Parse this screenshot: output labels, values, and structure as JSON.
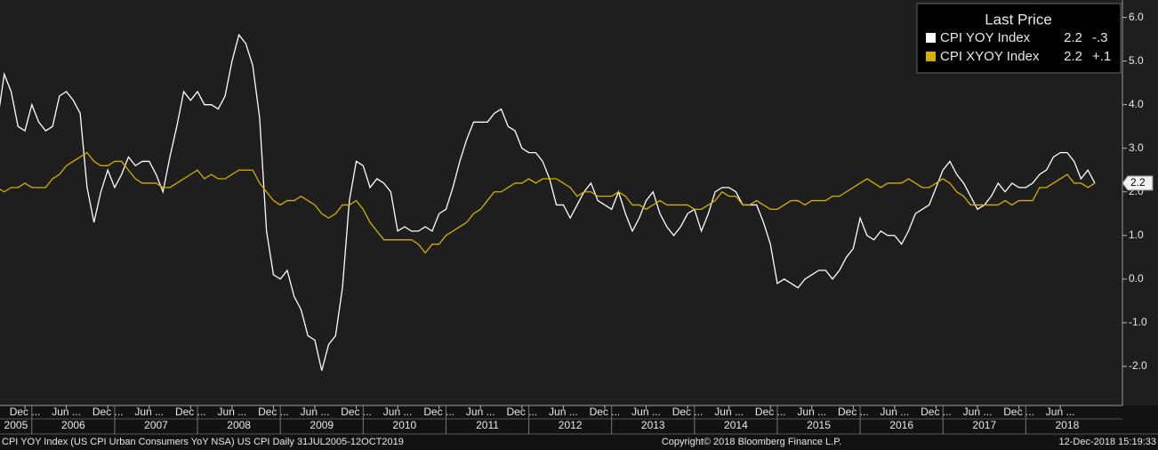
{
  "chart_data": {
    "type": "line",
    "legend_title": "Last Price",
    "x": [
      "2005-08",
      "2005-09",
      "2005-10",
      "2005-11",
      "2005-12",
      "2006-01",
      "2006-02",
      "2006-03",
      "2006-04",
      "2006-05",
      "2006-06",
      "2006-07",
      "2006-08",
      "2006-09",
      "2006-10",
      "2006-11",
      "2006-12",
      "2007-01",
      "2007-02",
      "2007-03",
      "2007-04",
      "2007-05",
      "2007-06",
      "2007-07",
      "2007-08",
      "2007-09",
      "2007-10",
      "2007-11",
      "2007-12",
      "2008-01",
      "2008-02",
      "2008-03",
      "2008-04",
      "2008-05",
      "2008-06",
      "2008-07",
      "2008-08",
      "2008-09",
      "2008-10",
      "2008-11",
      "2008-12",
      "2009-01",
      "2009-02",
      "2009-03",
      "2009-04",
      "2009-05",
      "2009-06",
      "2009-07",
      "2009-08",
      "2009-09",
      "2009-10",
      "2009-11",
      "2009-12",
      "2010-01",
      "2010-02",
      "2010-03",
      "2010-04",
      "2010-05",
      "2010-06",
      "2010-07",
      "2010-08",
      "2010-09",
      "2010-10",
      "2010-11",
      "2010-12",
      "2011-01",
      "2011-02",
      "2011-03",
      "2011-04",
      "2011-05",
      "2011-06",
      "2011-07",
      "2011-08",
      "2011-09",
      "2011-10",
      "2011-11",
      "2011-12",
      "2012-01",
      "2012-02",
      "2012-03",
      "2012-04",
      "2012-05",
      "2012-06",
      "2012-07",
      "2012-08",
      "2012-09",
      "2012-10",
      "2012-11",
      "2012-12",
      "2013-01",
      "2013-02",
      "2013-03",
      "2013-04",
      "2013-05",
      "2013-06",
      "2013-07",
      "2013-08",
      "2013-09",
      "2013-10",
      "2013-11",
      "2013-12",
      "2014-01",
      "2014-02",
      "2014-03",
      "2014-04",
      "2014-05",
      "2014-06",
      "2014-07",
      "2014-08",
      "2014-09",
      "2014-10",
      "2014-11",
      "2014-12",
      "2015-01",
      "2015-02",
      "2015-03",
      "2015-04",
      "2015-05",
      "2015-06",
      "2015-07",
      "2015-08",
      "2015-09",
      "2015-10",
      "2015-11",
      "2015-12",
      "2016-01",
      "2016-02",
      "2016-03",
      "2016-04",
      "2016-05",
      "2016-06",
      "2016-07",
      "2016-08",
      "2016-09",
      "2016-10",
      "2016-11",
      "2016-12",
      "2017-01",
      "2017-02",
      "2017-03",
      "2017-04",
      "2017-05",
      "2017-06",
      "2017-07",
      "2017-08",
      "2017-09",
      "2017-10",
      "2017-11",
      "2017-12",
      "2018-01",
      "2018-02",
      "2018-03",
      "2018-04",
      "2018-05",
      "2018-06",
      "2018-07",
      "2018-08",
      "2018-09",
      "2018-10",
      "2018-11"
    ],
    "series": [
      {
        "name": "CPI YOY Index",
        "last": "2.2",
        "change": "-.3",
        "color": "#ffffff",
        "values": [
          3.6,
          4.7,
          4.3,
          3.5,
          3.4,
          4.0,
          3.6,
          3.4,
          3.5,
          4.2,
          4.3,
          4.1,
          3.8,
          2.1,
          1.3,
          2.0,
          2.5,
          2.1,
          2.4,
          2.8,
          2.6,
          2.7,
          2.7,
          2.4,
          2.0,
          2.8,
          3.5,
          4.3,
          4.1,
          4.3,
          4.0,
          4.0,
          3.9,
          4.2,
          5.0,
          5.6,
          5.4,
          4.9,
          3.7,
          1.1,
          0.1,
          0.0,
          0.2,
          -0.4,
          -0.7,
          -1.3,
          -1.4,
          -2.1,
          -1.5,
          -1.3,
          -0.2,
          1.8,
          2.7,
          2.6,
          2.1,
          2.3,
          2.2,
          2.0,
          1.1,
          1.2,
          1.1,
          1.1,
          1.2,
          1.1,
          1.5,
          1.6,
          2.1,
          2.7,
          3.2,
          3.6,
          3.6,
          3.6,
          3.8,
          3.9,
          3.5,
          3.4,
          3.0,
          2.9,
          2.9,
          2.7,
          2.3,
          1.7,
          1.7,
          1.4,
          1.7,
          2.0,
          2.2,
          1.8,
          1.7,
          1.6,
          2.0,
          1.5,
          1.1,
          1.4,
          1.8,
          2.0,
          1.5,
          1.2,
          1.0,
          1.2,
          1.5,
          1.6,
          1.1,
          1.5,
          2.0,
          2.1,
          2.1,
          2.0,
          1.7,
          1.7,
          1.7,
          1.3,
          0.8,
          -0.1,
          0.0,
          -0.1,
          -0.2,
          0.0,
          0.1,
          0.2,
          0.2,
          0.0,
          0.2,
          0.5,
          0.7,
          1.4,
          1.0,
          0.9,
          1.1,
          1.0,
          1.0,
          0.8,
          1.1,
          1.5,
          1.6,
          1.7,
          2.1,
          2.5,
          2.7,
          2.4,
          2.2,
          1.9,
          1.6,
          1.7,
          1.9,
          2.2,
          2.0,
          2.2,
          2.1,
          2.1,
          2.2,
          2.4,
          2.5,
          2.8,
          2.9,
          2.9,
          2.7,
          2.3,
          2.5,
          2.2
        ]
      },
      {
        "name": "CPI XYOY Index",
        "last": "2.2",
        "change": "+.1",
        "color": "#d4b000",
        "values": [
          2.1,
          2.0,
          2.1,
          2.1,
          2.2,
          2.1,
          2.1,
          2.1,
          2.3,
          2.4,
          2.6,
          2.7,
          2.8,
          2.9,
          2.7,
          2.6,
          2.6,
          2.7,
          2.7,
          2.5,
          2.3,
          2.2,
          2.2,
          2.2,
          2.1,
          2.1,
          2.2,
          2.3,
          2.4,
          2.5,
          2.3,
          2.4,
          2.3,
          2.3,
          2.4,
          2.5,
          2.5,
          2.5,
          2.2,
          2.0,
          1.8,
          1.7,
          1.8,
          1.8,
          1.9,
          1.8,
          1.7,
          1.5,
          1.4,
          1.5,
          1.7,
          1.7,
          1.8,
          1.6,
          1.3,
          1.1,
          0.9,
          0.9,
          0.9,
          0.9,
          0.9,
          0.8,
          0.6,
          0.8,
          0.8,
          1.0,
          1.1,
          1.2,
          1.3,
          1.5,
          1.6,
          1.8,
          2.0,
          2.0,
          2.1,
          2.2,
          2.2,
          2.3,
          2.2,
          2.3,
          2.3,
          2.3,
          2.2,
          2.1,
          1.9,
          2.0,
          2.0,
          1.9,
          1.9,
          1.9,
          2.0,
          1.9,
          1.7,
          1.7,
          1.6,
          1.7,
          1.8,
          1.7,
          1.7,
          1.7,
          1.7,
          1.6,
          1.6,
          1.7,
          1.8,
          2.0,
          1.9,
          1.9,
          1.7,
          1.7,
          1.8,
          1.7,
          1.6,
          1.6,
          1.7,
          1.8,
          1.8,
          1.7,
          1.8,
          1.8,
          1.8,
          1.9,
          1.9,
          2.0,
          2.1,
          2.2,
          2.3,
          2.2,
          2.1,
          2.2,
          2.2,
          2.2,
          2.3,
          2.2,
          2.1,
          2.1,
          2.2,
          2.3,
          2.2,
          2.0,
          1.9,
          1.7,
          1.7,
          1.7,
          1.7,
          1.7,
          1.8,
          1.7,
          1.8,
          1.8,
          1.8,
          2.1,
          2.1,
          2.2,
          2.3,
          2.4,
          2.2,
          2.2,
          2.1,
          2.2
        ]
      }
    ],
    "last_value": 2.2,
    "xlim": [
      "2005-08",
      "2019-03"
    ],
    "xticks": [
      {
        "value": "2005-12",
        "label": "Dec ..."
      },
      {
        "value": "2006-06",
        "label": "Jun ..."
      },
      {
        "value": "2006-12",
        "label": "Dec ..."
      },
      {
        "value": "2007-06",
        "label": "Jun ..."
      },
      {
        "value": "2007-12",
        "label": "Dec ..."
      },
      {
        "value": "2008-06",
        "label": "Jun ..."
      },
      {
        "value": "2008-12",
        "label": "Dec ..."
      },
      {
        "value": "2009-06",
        "label": "Jun ..."
      },
      {
        "value": "2009-12",
        "label": "Dec ..."
      },
      {
        "value": "2010-06",
        "label": "Jun ..."
      },
      {
        "value": "2010-12",
        "label": "Dec ..."
      },
      {
        "value": "2011-06",
        "label": "Jun ..."
      },
      {
        "value": "2011-12",
        "label": "Dec ..."
      },
      {
        "value": "2012-06",
        "label": "Jun ..."
      },
      {
        "value": "2012-12",
        "label": "Dec ..."
      },
      {
        "value": "2013-06",
        "label": "Jun ..."
      },
      {
        "value": "2013-12",
        "label": "Dec ..."
      },
      {
        "value": "2014-06",
        "label": "Jun ..."
      },
      {
        "value": "2014-12",
        "label": "Dec ..."
      },
      {
        "value": "2015-06",
        "label": "Jun ..."
      },
      {
        "value": "2015-12",
        "label": "Dec ..."
      },
      {
        "value": "2016-06",
        "label": "Jun ..."
      },
      {
        "value": "2016-12",
        "label": "Dec ..."
      },
      {
        "value": "2017-06",
        "label": "Jun ..."
      },
      {
        "value": "2017-12",
        "label": "Dec ..."
      },
      {
        "value": "2018-06",
        "label": "Jun ..."
      }
    ],
    "years": [
      "2005",
      "2006",
      "2007",
      "2008",
      "2009",
      "2010",
      "2011",
      "2012",
      "2013",
      "2014",
      "2015",
      "2016",
      "2017",
      "2018"
    ],
    "ylim": [
      -2.9,
      6.4
    ],
    "yticks": [
      {
        "value": -2,
        "label": "-2.0"
      },
      {
        "value": -1,
        "label": "-1.0"
      },
      {
        "value": 0,
        "label": "0.0"
      },
      {
        "value": 1,
        "label": "1.0"
      },
      {
        "value": 2,
        "label": "2.0"
      },
      {
        "value": 3,
        "label": "3.0"
      },
      {
        "value": 4,
        "label": "4.0"
      },
      {
        "value": 5,
        "label": "5.0"
      },
      {
        "value": 6,
        "label": "6.0"
      }
    ],
    "grid": false,
    "legend": "top-right"
  },
  "footer": {
    "left": "CPI YOY Index (US CPI Urban Consumers YoY NSA) US CPI  Daily 31JUL2005-12OCT2019",
    "center": "Copyright© 2018 Bloomberg Finance L.P.",
    "right": "12-Dec-2018 15:19:33"
  }
}
